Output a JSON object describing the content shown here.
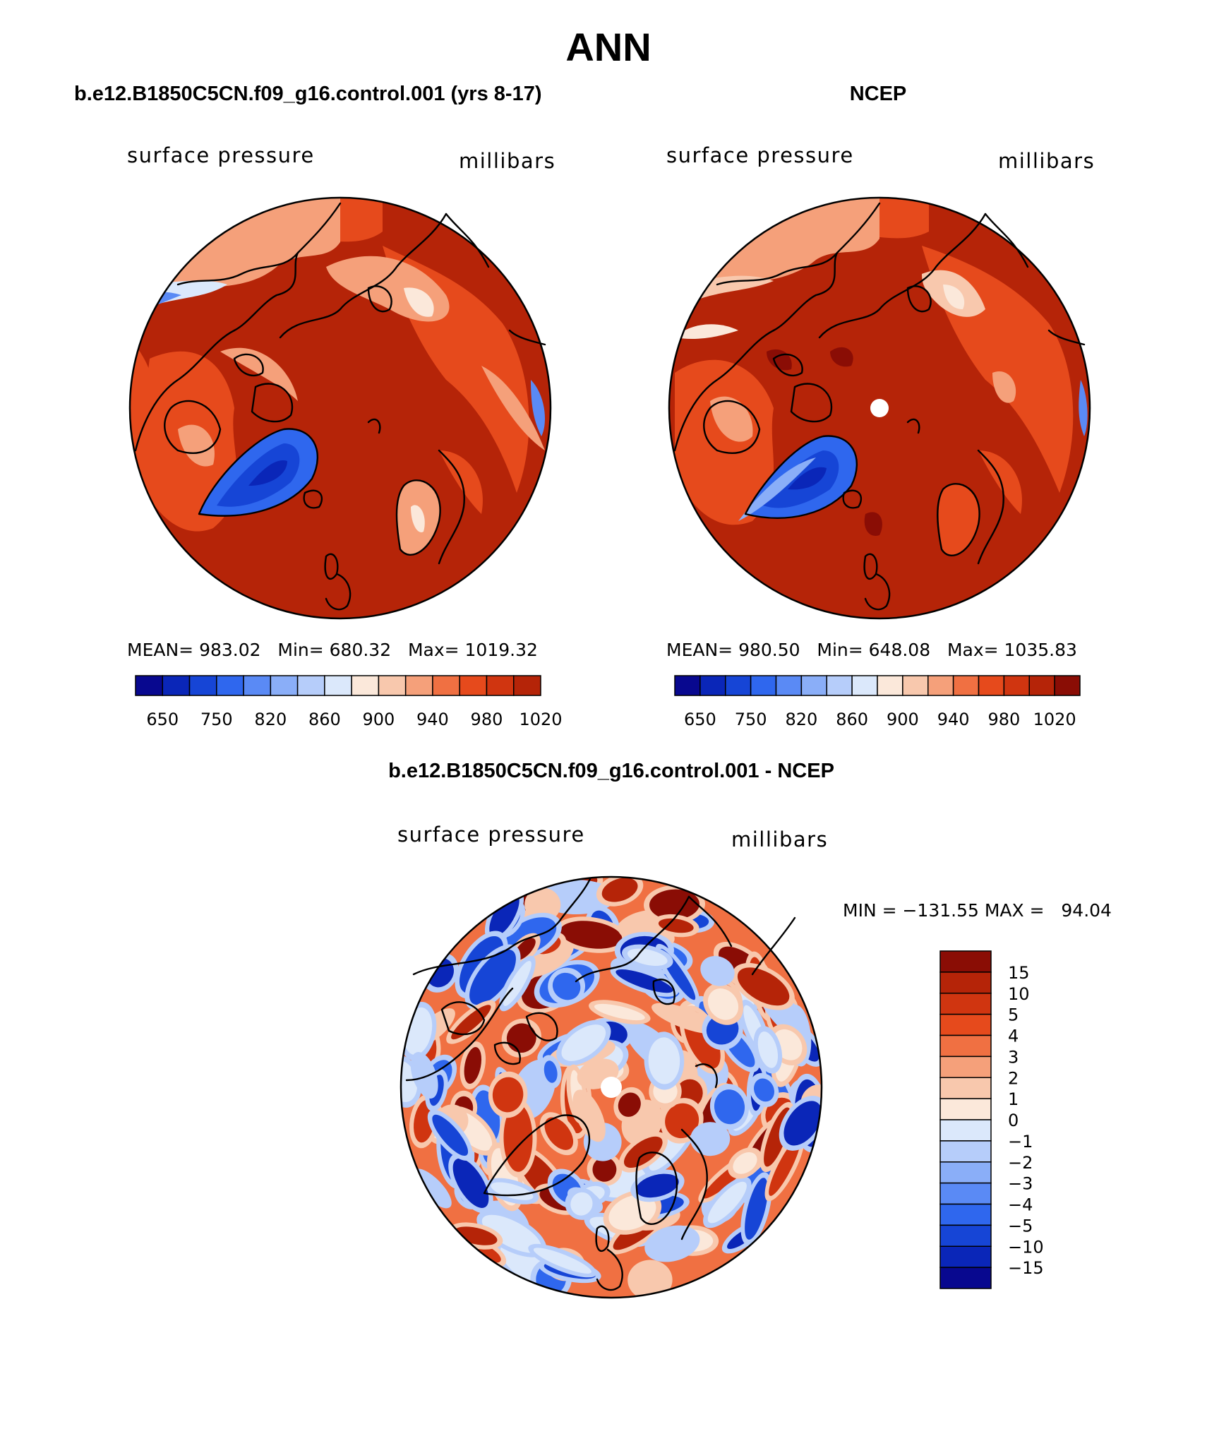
{
  "figure": {
    "title": "ANN"
  },
  "palettes": {
    "abs": [
      "#08088f",
      "#0a26b8",
      "#1645d6",
      "#2f67ee",
      "#5a8af5",
      "#8aaef8",
      "#b6cdfa",
      "#dbe8fb",
      "#fbe8da",
      "#f8c8ad",
      "#f5a07a",
      "#f07042",
      "#e64a1c",
      "#d03510",
      "#b52408",
      "#8a0d05"
    ],
    "diff": [
      "#08088f",
      "#0a26b8",
      "#1645d6",
      "#2f67ee",
      "#5a8af5",
      "#8aaef8",
      "#b6cdfa",
      "#dbe8fb",
      "#fbe8da",
      "#f8c8ad",
      "#f5a07a",
      "#f07042",
      "#e64a1c",
      "#d03510",
      "#b52408",
      "#8a0d05"
    ]
  },
  "panels": [
    {
      "header": "b.e12.B1850C5CN.f09_g16.control.001 (yrs 8-17)",
      "left_label": "surface pressure",
      "right_label": "millibars",
      "stats": "MEAN= 983.02   Min= 680.32   Max= 1019.32",
      "colorbar_ticks": [
        "650",
        "750",
        "820",
        "860",
        "900",
        "940",
        "980",
        "1020"
      ]
    },
    {
      "header": "NCEP",
      "left_label": "surface pressure",
      "right_label": "millibars",
      "stats": "MEAN= 980.50   Min= 648.08   Max= 1035.83",
      "colorbar_ticks": [
        "650",
        "750",
        "820",
        "860",
        "900",
        "940",
        "980",
        "1020"
      ]
    },
    {
      "header": "b.e12.B1850C5CN.f09_g16.control.001 - NCEP",
      "left_label": "surface pressure",
      "right_label": "millibars",
      "stats": "MIN = −131.55 MAX =   94.04",
      "colorbar_ticks": [
        "15",
        "10",
        "5",
        "4",
        "3",
        "2",
        "1",
        "0",
        "−1",
        "−2",
        "−3",
        "−4",
        "−5",
        "−10",
        "−15"
      ]
    }
  ],
  "chart_data": [
    {
      "type": "heatmap",
      "projection": "north polar stereographic",
      "title": "b.e12.B1850C5CN.f09_g16.control.001 (yrs 8-17)",
      "variable": "surface pressure",
      "units": "millibars",
      "mean": 983.02,
      "min": 680.32,
      "max": 1019.32,
      "contour_levels": [
        650,
        700,
        750,
        800,
        820,
        840,
        860,
        880,
        900,
        920,
        940,
        960,
        980,
        1000,
        1020
      ]
    },
    {
      "type": "heatmap",
      "projection": "north polar stereographic",
      "title": "NCEP",
      "variable": "surface pressure",
      "units": "millibars",
      "mean": 980.5,
      "min": 648.08,
      "max": 1035.83,
      "contour_levels": [
        650,
        700,
        750,
        800,
        820,
        840,
        860,
        880,
        900,
        920,
        940,
        960,
        980,
        1000,
        1020
      ]
    },
    {
      "type": "heatmap",
      "projection": "north polar stereographic",
      "title": "b.e12.B1850C5CN.f09_g16.control.001 - NCEP",
      "variable": "surface pressure",
      "units": "millibars",
      "min": -131.55,
      "max": 94.04,
      "contour_levels": [
        -15,
        -10,
        -5,
        -4,
        -3,
        -2,
        -1,
        0,
        1,
        2,
        3,
        4,
        5,
        10,
        15
      ]
    }
  ]
}
